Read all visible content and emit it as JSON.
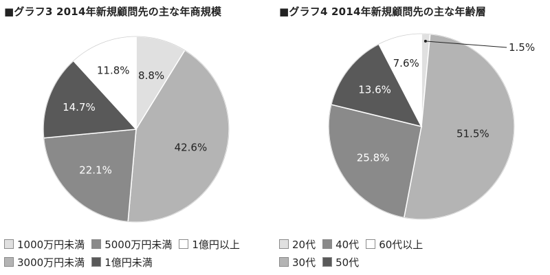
{
  "chart_data": [
    {
      "type": "pie",
      "title": "■グラフ3 2014年新規顧問先の主な年商規模",
      "categories": [
        "1000万円未満",
        "3000万円未満",
        "5000万円未満",
        "1億円未満",
        "1億円以上"
      ],
      "values": [
        8.8,
        42.6,
        22.1,
        14.7,
        11.8
      ],
      "labels": [
        "8.8%",
        "42.6%",
        "22.1%",
        "14.7%",
        "11.8%"
      ],
      "colors": [
        "#e0e0e0",
        "#b4b4b4",
        "#8a8a8a",
        "#595959",
        "#ffffff"
      ],
      "start": "12 o'clock",
      "direction": "clockwise",
      "legend": {
        "placement": "bottom",
        "rows": [
          [
            "1000万円未満",
            "5000万円未満",
            "1億円以上"
          ],
          [
            "3000万円未満",
            "1億円未満"
          ]
        ]
      }
    },
    {
      "type": "pie",
      "title": "■グラフ4 2014年新規顧問先の主な年齢層",
      "categories": [
        "20代",
        "30代",
        "40代",
        "50代",
        "60代以上"
      ],
      "values": [
        1.5,
        51.5,
        25.8,
        13.6,
        7.6
      ],
      "labels": [
        "1.5%",
        "51.5%",
        "25.8%",
        "13.6%",
        "7.6%"
      ],
      "colors": [
        "#e0e0e0",
        "#b4b4b4",
        "#8a8a8a",
        "#595959",
        "#ffffff"
      ],
      "start": "12 o'clock",
      "direction": "clockwise",
      "legend": {
        "placement": "bottom",
        "rows": [
          [
            "20代",
            "40代",
            "60代以上"
          ],
          [
            "30代",
            "50代"
          ]
        ]
      }
    }
  ]
}
